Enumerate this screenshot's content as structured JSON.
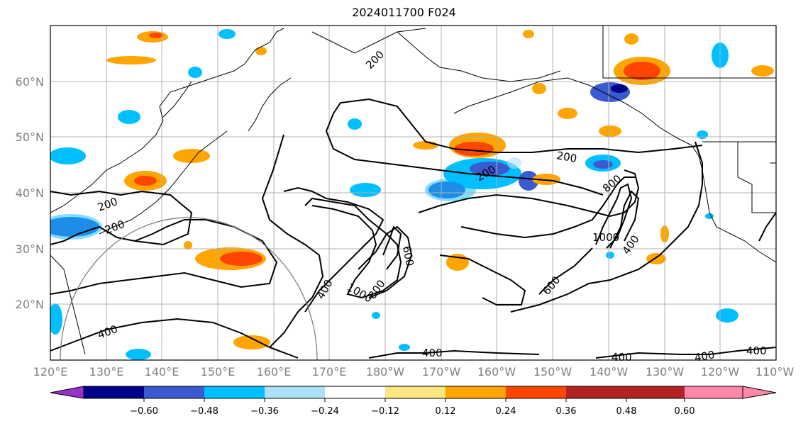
{
  "title": "2024011700 F024",
  "map": {
    "projection": "equirectangular",
    "lon_range": [
      120,
      250
    ],
    "lat_range": [
      10,
      70
    ],
    "lon_ticks": [
      "120°E",
      "130°E",
      "140°E",
      "150°E",
      "160°E",
      "170°E",
      "180°W",
      "170°W",
      "160°W",
      "150°W",
      "140°W",
      "130°W",
      "120°W",
      "110°W"
    ],
    "lat_ticks": [
      "20°N",
      "30°N",
      "40°N",
      "50°N",
      "60°N"
    ],
    "gridlines": true,
    "contour_labels": [
      "200",
      "200",
      "200",
      "200",
      "200",
      "600",
      "800",
      "1000",
      "400",
      "400",
      "400",
      "400",
      "400",
      "600",
      "800",
      "1000",
      "400",
      "400"
    ]
  },
  "colorbar": {
    "orientation": "horizontal",
    "extend": "both",
    "colors": [
      "#9932cc",
      "#00008b",
      "#3a5bcf",
      "#00bfff",
      "#aee0fa",
      "#ffffff",
      "#ffe680",
      "#ffa500",
      "#ff4500",
      "#b22222",
      "#ff88aa"
    ],
    "tick_labels": [
      "−0.60",
      "−0.48",
      "−0.36",
      "−0.24",
      "−0.12",
      "0.12",
      "0.24",
      "0.36",
      "0.48",
      "0.60"
    ]
  }
}
